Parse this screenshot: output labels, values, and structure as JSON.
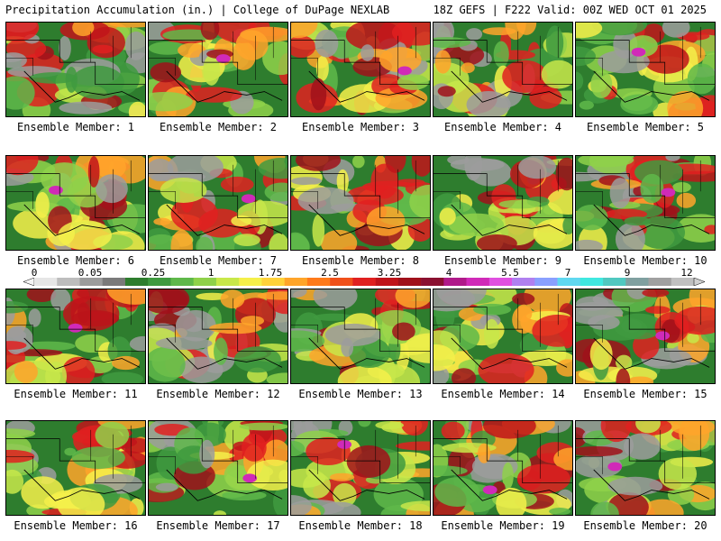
{
  "header": {
    "left": "Precipitation Accumulation (in.) | College of DuPage NEXLAB",
    "right": "18Z GEFS | F222 Valid: 00Z WED OCT 01 2025"
  },
  "panels": [
    {
      "label": "Ensemble Member: 1"
    },
    {
      "label": "Ensemble Member: 2"
    },
    {
      "label": "Ensemble Member: 3"
    },
    {
      "label": "Ensemble Member: 4"
    },
    {
      "label": "Ensemble Member: 5"
    },
    {
      "label": "Ensemble Member: 6"
    },
    {
      "label": "Ensemble Member: 7"
    },
    {
      "label": "Ensemble Member: 8"
    },
    {
      "label": "Ensemble Member: 9"
    },
    {
      "label": "Ensemble Member: 10"
    },
    {
      "label": "Ensemble Member: 11"
    },
    {
      "label": "Ensemble Member: 12"
    },
    {
      "label": "Ensemble Member: 13"
    },
    {
      "label": "Ensemble Member: 14"
    },
    {
      "label": "Ensemble Member: 15"
    },
    {
      "label": "Ensemble Member: 16"
    },
    {
      "label": "Ensemble Member: 17"
    },
    {
      "label": "Ensemble Member: 18"
    },
    {
      "label": "Ensemble Member: 19"
    },
    {
      "label": "Ensemble Member: 20"
    }
  ],
  "colorbar": {
    "tick_labels": [
      "0",
      "0.05",
      "0.25",
      "1",
      "1.75",
      "2.5",
      "3.25",
      "4",
      "5.5",
      "7",
      "9",
      "12"
    ],
    "colors": [
      "#e6e6e6",
      "#bdbdbd",
      "#9c9c9c",
      "#7a7a7a",
      "#2e7d2e",
      "#3f9a3f",
      "#5fb84a",
      "#8fd14a",
      "#c8e84a",
      "#f5f04a",
      "#ffd23a",
      "#ffa52a",
      "#ff7a1a",
      "#f0501a",
      "#e02020",
      "#c0141a",
      "#a0101a",
      "#8a1030",
      "#b01a8a",
      "#d02ab8",
      "#e050e0",
      "#b080f0",
      "#8aa0ff",
      "#60d8f0",
      "#40e8e0",
      "#50c8c0",
      "#80a0a0",
      "#a0a0a0",
      "#c0c0c0"
    ]
  }
}
